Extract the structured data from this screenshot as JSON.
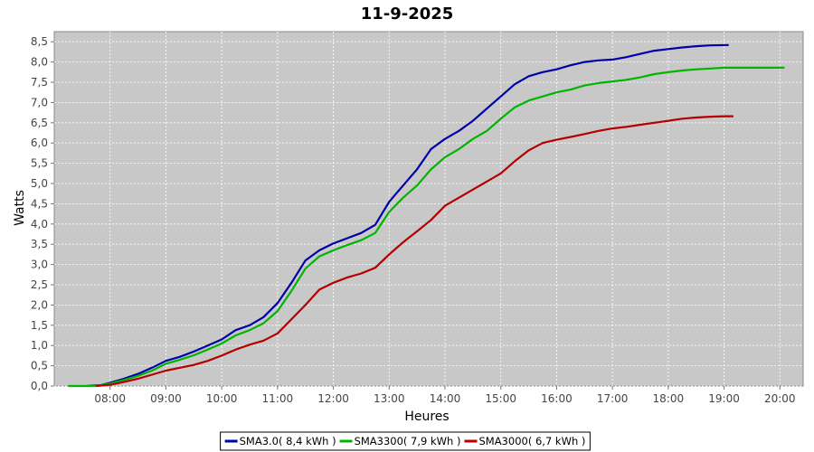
{
  "chart_data": {
    "type": "line",
    "title": "11-9-2025",
    "xlabel": "Heures",
    "ylabel": "Watts",
    "xlim": [
      "07:00",
      "20:25"
    ],
    "ylim": [
      0,
      8.75
    ],
    "x_ticks": [
      "08:00",
      "09:00",
      "10:00",
      "11:00",
      "12:00",
      "13:00",
      "14:00",
      "15:00",
      "16:00",
      "17:00",
      "18:00",
      "19:00",
      "20:00"
    ],
    "y_ticks": [
      "0,0",
      "0,5",
      "1,0",
      "1,5",
      "2,0",
      "2,5",
      "3,0",
      "3,5",
      "4,0",
      "4,5",
      "5,0",
      "5,5",
      "6,0",
      "6,5",
      "7,0",
      "7,5",
      "8,0",
      "8,5"
    ],
    "grid": true,
    "legend_position": "bottom",
    "background": "#c8c8c8",
    "series": [
      {
        "name": "SMA3.0( 8,4 kWh )",
        "color": "#0000aa",
        "points": [
          [
            "07:35",
            0.0
          ],
          [
            "07:50",
            0.02
          ],
          [
            "08:00",
            0.08
          ],
          [
            "08:15",
            0.18
          ],
          [
            "08:30",
            0.3
          ],
          [
            "08:45",
            0.45
          ],
          [
            "09:00",
            0.62
          ],
          [
            "09:15",
            0.72
          ],
          [
            "09:30",
            0.85
          ],
          [
            "09:45",
            1.0
          ],
          [
            "10:00",
            1.15
          ],
          [
            "10:15",
            1.38
          ],
          [
            "10:30",
            1.5
          ],
          [
            "10:45",
            1.7
          ],
          [
            "11:00",
            2.05
          ],
          [
            "11:15",
            2.55
          ],
          [
            "11:30",
            3.1
          ],
          [
            "11:45",
            3.35
          ],
          [
            "12:00",
            3.52
          ],
          [
            "12:15",
            3.65
          ],
          [
            "12:30",
            3.78
          ],
          [
            "12:45",
            3.98
          ],
          [
            "13:00",
            4.55
          ],
          [
            "13:15",
            4.95
          ],
          [
            "13:30",
            5.35
          ],
          [
            "13:45",
            5.85
          ],
          [
            "14:00",
            6.1
          ],
          [
            "14:15",
            6.3
          ],
          [
            "14:30",
            6.55
          ],
          [
            "14:45",
            6.85
          ],
          [
            "15:00",
            7.15
          ],
          [
            "15:15",
            7.45
          ],
          [
            "15:30",
            7.65
          ],
          [
            "15:45",
            7.75
          ],
          [
            "16:00",
            7.82
          ],
          [
            "16:15",
            7.92
          ],
          [
            "16:30",
            8.0
          ],
          [
            "16:45",
            8.04
          ],
          [
            "17:00",
            8.06
          ],
          [
            "17:15",
            8.12
          ],
          [
            "17:30",
            8.2
          ],
          [
            "17:45",
            8.28
          ],
          [
            "18:00",
            8.32
          ],
          [
            "18:15",
            8.36
          ],
          [
            "18:30",
            8.39
          ],
          [
            "18:45",
            8.41
          ],
          [
            "19:05",
            8.42
          ]
        ]
      },
      {
        "name": "SMA3300( 7,9 kWh )",
        "color": "#00b400",
        "points": [
          [
            "07:15",
            0.0
          ],
          [
            "07:45",
            0.0
          ],
          [
            "08:00",
            0.06
          ],
          [
            "08:15",
            0.15
          ],
          [
            "08:30",
            0.25
          ],
          [
            "08:45",
            0.38
          ],
          [
            "09:00",
            0.55
          ],
          [
            "09:15",
            0.65
          ],
          [
            "09:30",
            0.76
          ],
          [
            "09:45",
            0.9
          ],
          [
            "10:00",
            1.05
          ],
          [
            "10:15",
            1.25
          ],
          [
            "10:30",
            1.38
          ],
          [
            "10:45",
            1.55
          ],
          [
            "11:00",
            1.85
          ],
          [
            "11:15",
            2.35
          ],
          [
            "11:30",
            2.9
          ],
          [
            "11:45",
            3.2
          ],
          [
            "12:00",
            3.35
          ],
          [
            "12:15",
            3.48
          ],
          [
            "12:30",
            3.6
          ],
          [
            "12:45",
            3.78
          ],
          [
            "13:00",
            4.3
          ],
          [
            "13:15",
            4.65
          ],
          [
            "13:30",
            4.95
          ],
          [
            "13:45",
            5.35
          ],
          [
            "14:00",
            5.65
          ],
          [
            "14:15",
            5.85
          ],
          [
            "14:30",
            6.1
          ],
          [
            "14:45",
            6.3
          ],
          [
            "15:00",
            6.6
          ],
          [
            "15:15",
            6.88
          ],
          [
            "15:30",
            7.05
          ],
          [
            "15:45",
            7.15
          ],
          [
            "16:00",
            7.25
          ],
          [
            "16:15",
            7.32
          ],
          [
            "16:30",
            7.42
          ],
          [
            "16:45",
            7.48
          ],
          [
            "17:00",
            7.52
          ],
          [
            "17:15",
            7.56
          ],
          [
            "17:30",
            7.62
          ],
          [
            "17:45",
            7.7
          ],
          [
            "18:00",
            7.75
          ],
          [
            "18:15",
            7.79
          ],
          [
            "18:30",
            7.82
          ],
          [
            "18:45",
            7.84
          ],
          [
            "19:00",
            7.86
          ],
          [
            "20:05",
            7.86
          ]
        ]
      },
      {
        "name": "SMA3000( 6,7 kWh )",
        "color": "#b40000",
        "points": [
          [
            "07:45",
            0.0
          ],
          [
            "08:00",
            0.03
          ],
          [
            "08:15",
            0.1
          ],
          [
            "08:30",
            0.18
          ],
          [
            "08:45",
            0.28
          ],
          [
            "09:00",
            0.38
          ],
          [
            "09:15",
            0.45
          ],
          [
            "09:30",
            0.52
          ],
          [
            "09:45",
            0.62
          ],
          [
            "10:00",
            0.75
          ],
          [
            "10:15",
            0.9
          ],
          [
            "10:30",
            1.02
          ],
          [
            "10:45",
            1.12
          ],
          [
            "11:00",
            1.3
          ],
          [
            "11:15",
            1.65
          ],
          [
            "11:30",
            2.0
          ],
          [
            "11:45",
            2.38
          ],
          [
            "12:00",
            2.55
          ],
          [
            "12:15",
            2.68
          ],
          [
            "12:30",
            2.78
          ],
          [
            "12:45",
            2.92
          ],
          [
            "13:00",
            3.25
          ],
          [
            "13:15",
            3.55
          ],
          [
            "13:30",
            3.82
          ],
          [
            "13:45",
            4.1
          ],
          [
            "14:00",
            4.45
          ],
          [
            "14:15",
            4.65
          ],
          [
            "14:30",
            4.85
          ],
          [
            "14:45",
            5.05
          ],
          [
            "15:00",
            5.25
          ],
          [
            "15:15",
            5.55
          ],
          [
            "15:30",
            5.82
          ],
          [
            "15:45",
            6.0
          ],
          [
            "16:00",
            6.08
          ],
          [
            "16:15",
            6.15
          ],
          [
            "16:30",
            6.22
          ],
          [
            "16:45",
            6.3
          ],
          [
            "17:00",
            6.36
          ],
          [
            "17:15",
            6.4
          ],
          [
            "17:30",
            6.45
          ],
          [
            "17:45",
            6.5
          ],
          [
            "18:00",
            6.55
          ],
          [
            "18:15",
            6.6
          ],
          [
            "18:30",
            6.63
          ],
          [
            "18:45",
            6.65
          ],
          [
            "19:00",
            6.66
          ],
          [
            "19:10",
            6.66
          ]
        ]
      }
    ]
  }
}
